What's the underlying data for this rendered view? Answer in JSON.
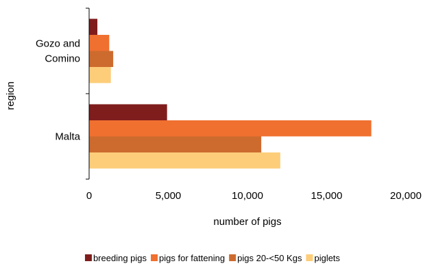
{
  "chart_data": {
    "type": "bar",
    "orientation": "horizontal",
    "categories": [
      "Gozo and Comino",
      "Malta"
    ],
    "category_lines": [
      [
        "Gozo and",
        "Comino"
      ],
      [
        "Malta"
      ]
    ],
    "series": [
      {
        "name": "breeding pigs",
        "color": "#7f1d1d",
        "values": [
          500,
          4900
        ]
      },
      {
        "name": "pigs for fattening",
        "color": "#f07030",
        "values": [
          1250,
          17800
        ]
      },
      {
        "name": "pigs 20-<50 Kgs",
        "color": "#cd6b2e",
        "values": [
          1500,
          10850
        ]
      },
      {
        "name": "piglets",
        "color": "#fdcd79",
        "values": [
          1350,
          12050
        ]
      }
    ],
    "xlabel": "number of pigs",
    "ylabel": "region",
    "xlim": [
      0,
      20000
    ],
    "x_ticks": [
      0,
      5000,
      10000,
      15000,
      20000
    ],
    "x_tick_labels": [
      "0",
      "5,000",
      "10,000",
      "15,000",
      "20,000"
    ],
    "grid": false,
    "legend_position": "bottom"
  }
}
